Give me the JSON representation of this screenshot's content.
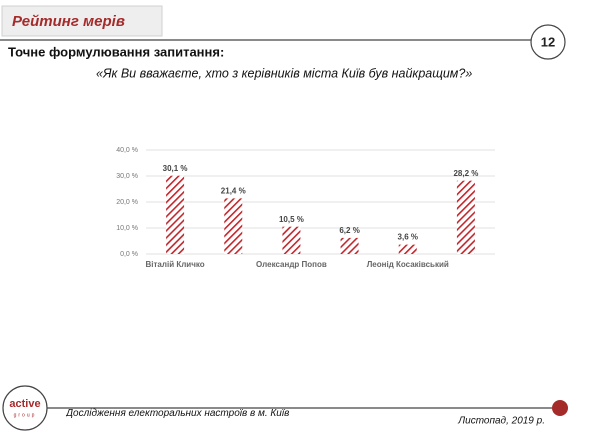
{
  "header": {
    "title": "Рейтинг мерів",
    "page_number": "12"
  },
  "question_label": "Точне формулювання запитання:",
  "question": "«Як Ви вважаєте, хто з керівників міста Київ був найкращим?»",
  "chart_data": {
    "type": "bar",
    "categories": [
      "Віталій Кличко",
      null,
      "Олександр Попов",
      null,
      "Леонід Косаківський",
      null
    ],
    "values": [
      30.1,
      21.4,
      10.5,
      6.2,
      3.6,
      28.2
    ],
    "value_labels": [
      "30,1 %",
      "21,4 %",
      "10,5 %",
      "6,2 %",
      "3,6 %",
      "28,2 %"
    ],
    "color": "#c0272d",
    "ylim": [
      0,
      40
    ],
    "yticks": [
      {
        "value": 0,
        "label": "0,0 %"
      },
      {
        "value": 10,
        "label": "10,0 %"
      },
      {
        "value": 20,
        "label": "20,0 %"
      },
      {
        "value": 30,
        "label": "30,0 %"
      },
      {
        "value": 40,
        "label": "40,0 %"
      }
    ],
    "grid": true
  },
  "footer": {
    "logo_main": "active",
    "logo_sub": "group",
    "source": "Дослідження електоральних настроїв в м. Київ",
    "date": "Листопад, 2019 р."
  }
}
